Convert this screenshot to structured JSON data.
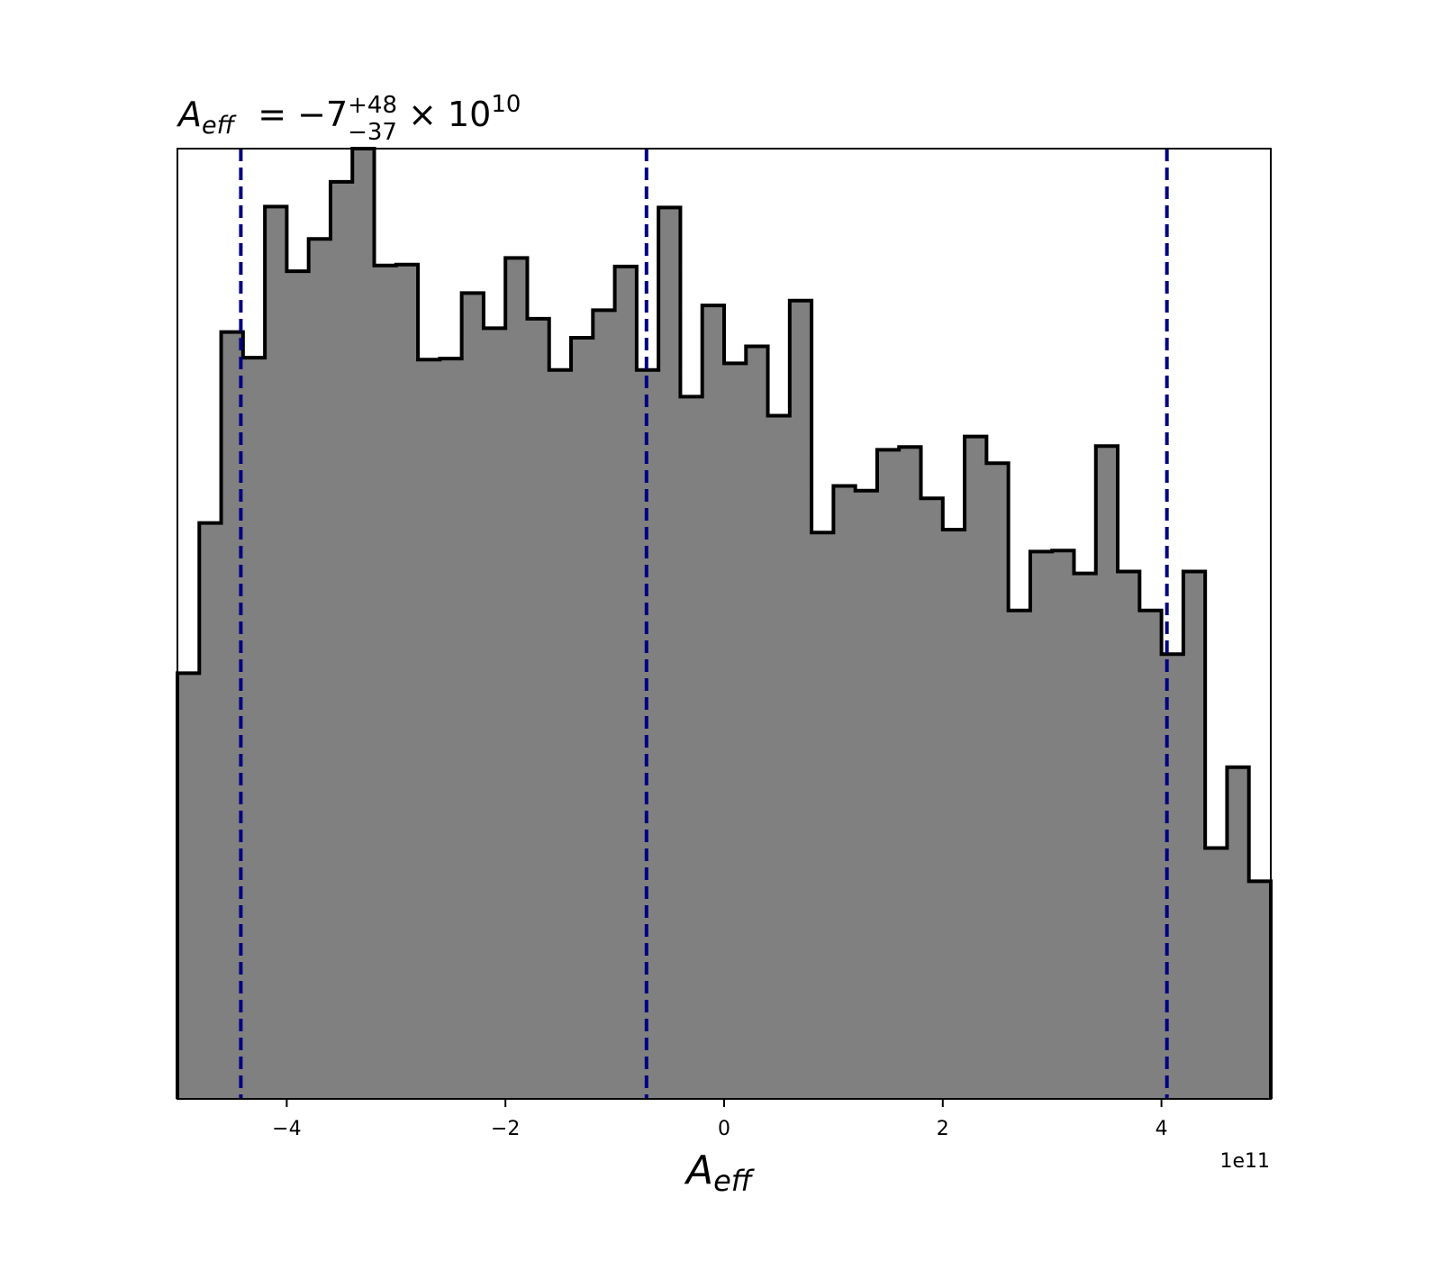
{
  "chart_data": {
    "type": "bar",
    "histtype": "step-filled",
    "title": {
      "var_base": "A",
      "var_sub": "eff",
      "equals": " = −7",
      "upper": "+48",
      "lower": "−37",
      "times": " × 10",
      "exponent": "10"
    },
    "xlabel": {
      "base": "A",
      "sub": "eff"
    },
    "ylabel": "",
    "x_offset_text": "1e11",
    "x_scale": 100000000000.0,
    "xlim": [
      -5.0,
      5.0
    ],
    "ylim": [
      0,
      1
    ],
    "xticks": [
      -4,
      -2,
      0,
      2,
      4
    ],
    "xtick_labels": [
      "−4",
      "−2",
      "0",
      "2",
      "4"
    ],
    "show_yticks": false,
    "grid": false,
    "bin_edges": [
      -5.0,
      -4.8,
      -4.6,
      -4.4,
      -4.2,
      -4.0,
      -3.8,
      -3.6,
      -3.4,
      -3.2,
      -3.0,
      -2.8,
      -2.6,
      -2.4,
      -2.2,
      -2.0,
      -1.8,
      -1.6,
      -1.4,
      -1.2,
      -1.0,
      -0.8,
      -0.6,
      -0.4,
      -0.2,
      0.0,
      0.2,
      0.4,
      0.6,
      0.8,
      1.0,
      1.2,
      1.4,
      1.6,
      1.8,
      2.0,
      2.2,
      2.4,
      2.6,
      2.8,
      3.0,
      3.2,
      3.4,
      3.6,
      3.8,
      4.0,
      4.2,
      4.4,
      4.6,
      4.8,
      5.0
    ],
    "values": [
      0.448,
      0.606,
      0.807,
      0.78,
      0.939,
      0.871,
      0.905,
      0.965,
      1.0,
      0.877,
      0.878,
      0.778,
      0.779,
      0.848,
      0.811,
      0.885,
      0.821,
      0.767,
      0.801,
      0.83,
      0.876,
      0.767,
      0.938,
      0.739,
      0.835,
      0.774,
      0.792,
      0.719,
      0.84,
      0.596,
      0.645,
      0.64,
      0.683,
      0.686,
      0.632,
      0.599,
      0.697,
      0.669,
      0.514,
      0.576,
      0.577,
      0.553,
      0.687,
      0.555,
      0.514,
      0.468,
      0.555,
      0.264,
      0.349,
      0.229
    ],
    "fill_color": "#808080",
    "edge_color": "#000000",
    "quantile_lines": [
      -4.42,
      -0.71,
      4.05
    ],
    "quantile_color": "#000080"
  }
}
